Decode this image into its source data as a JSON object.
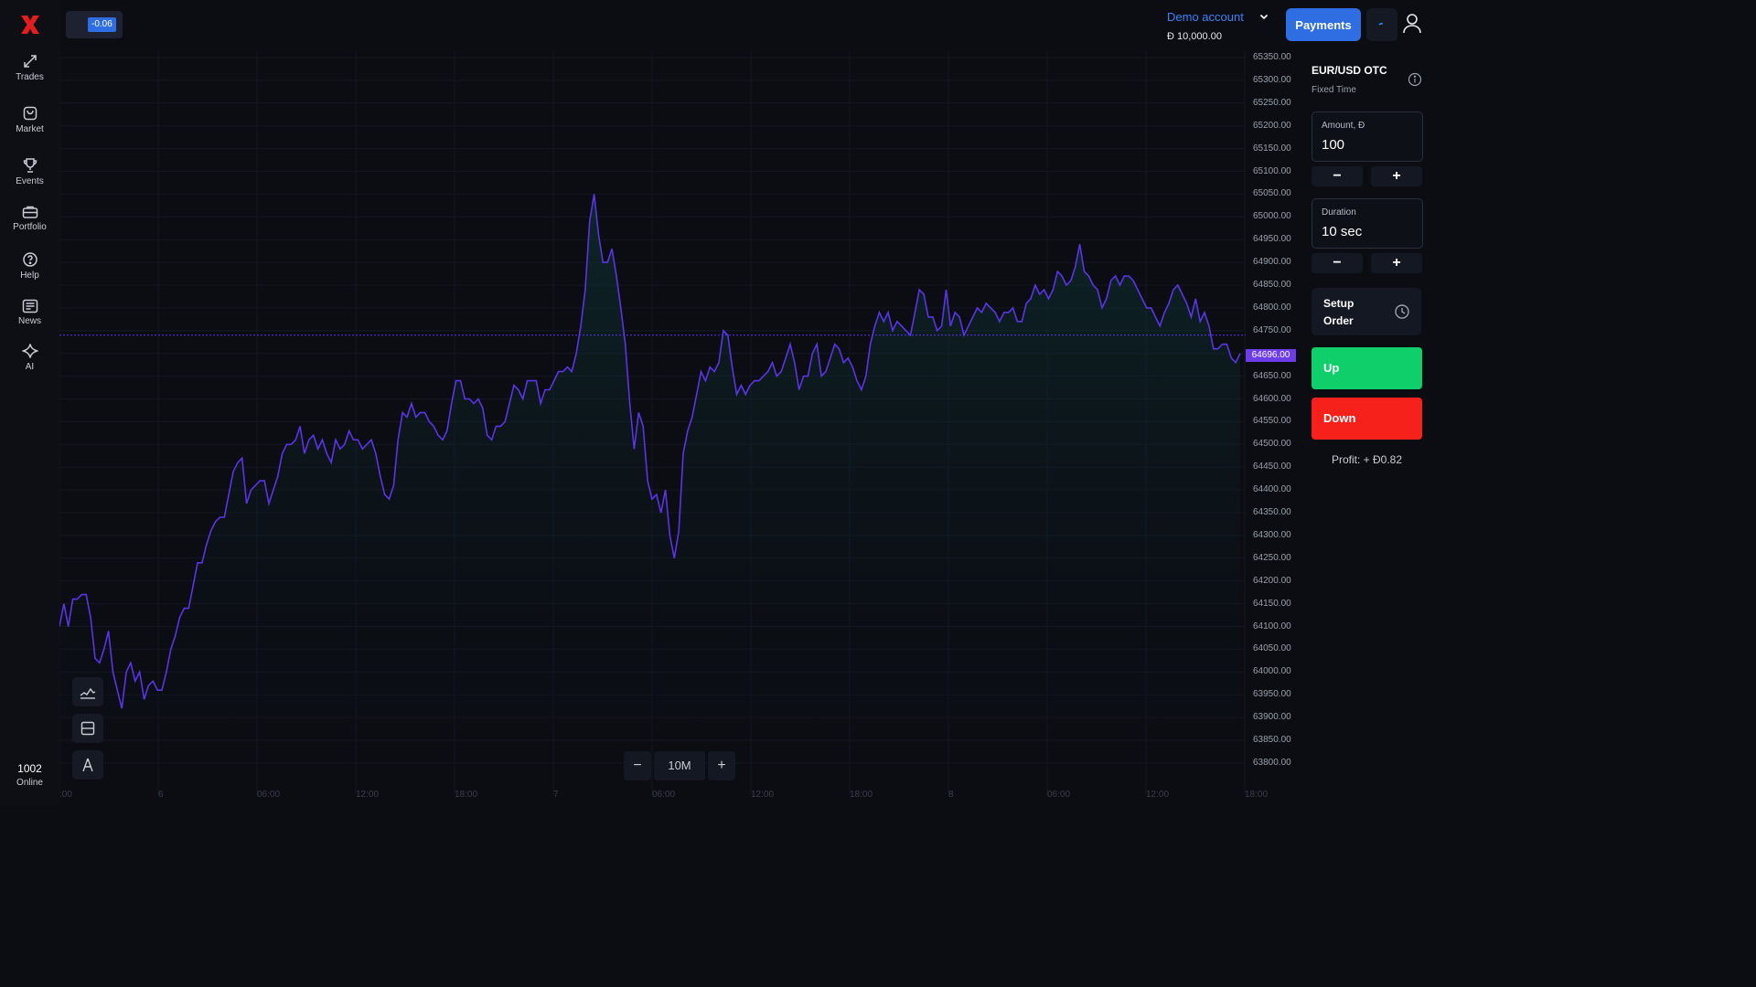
{
  "sidebar": {
    "logo": "x-logo",
    "items": [
      {
        "label": "Trades",
        "icon": "trades-arrows-icon"
      },
      {
        "label": "Market",
        "icon": "shopping-bag-icon"
      },
      {
        "label": "Events",
        "icon": "trophy-icon"
      },
      {
        "label": "Portfolio",
        "icon": "briefcase-icon"
      },
      {
        "label": "Help",
        "icon": "help-icon"
      },
      {
        "label": "News",
        "icon": "news-icon"
      },
      {
        "label": "AI",
        "icon": "sparkle-icon"
      }
    ],
    "online_count": "1002",
    "online_label": "Online"
  },
  "header": {
    "change_badge": "-0.06",
    "account_name": "Demo account",
    "account_balance": "Đ 10,000.00",
    "payments_label": "Payments"
  },
  "chart": {
    "current_price": "64696.00",
    "zoom_level": "10M",
    "zoom_minus": "−",
    "zoom_plus": "+",
    "y_ticks": [
      "65350.00",
      "65300.00",
      "65250.00",
      "65200.00",
      "65150.00",
      "65100.00",
      "65050.00",
      "65000.00",
      "64950.00",
      "64900.00",
      "64850.00",
      "64800.00",
      "64750.00",
      "64700.00",
      "64650.00",
      "64600.00",
      "64550.00",
      "64500.00",
      "64450.00",
      "64400.00",
      "64350.00",
      "64300.00",
      "64250.00",
      "64200.00",
      "64150.00",
      "64100.00",
      "64050.00",
      "64000.00",
      "63950.00",
      "63900.00",
      "63850.00",
      "63800.00"
    ],
    "x_ticks": [
      ":00",
      "6",
      "06:00",
      "12:00",
      "18:00",
      "7",
      "06:00",
      "12:00",
      "18:00",
      "8",
      "06:00",
      "12:00",
      "18:00"
    ],
    "line_color": "#5b34e8",
    "accent_color": "#6c3ce9"
  },
  "chart_data": {
    "type": "line",
    "ylim": [
      63780,
      65360
    ],
    "series": [
      {
        "values": [
          64100,
          64150,
          64100,
          64160,
          64160,
          64170,
          64170,
          64120,
          64030,
          64020,
          64050,
          64090,
          64000,
          63960,
          63920,
          64000,
          64020,
          63980,
          64000,
          63940,
          63970,
          63980,
          63960,
          63960,
          64000,
          64050,
          64080,
          64120,
          64140,
          64140,
          64190,
          64240,
          64240,
          64280,
          64310,
          64330,
          64340,
          64340,
          64390,
          64440,
          64460,
          64470,
          64370,
          64400,
          64410,
          64420,
          64420,
          64370,
          64400,
          64430,
          64480,
          64500,
          64500,
          64510,
          64540,
          64480,
          64510,
          64520,
          64490,
          64510,
          64480,
          64460,
          64510,
          64490,
          64500,
          64530,
          64510,
          64510,
          64490,
          64500,
          64510,
          64480,
          64430,
          64390,
          64380,
          64410,
          64510,
          64570,
          64560,
          64590,
          64560,
          64570,
          64570,
          64550,
          64540,
          64520,
          64510,
          64530,
          64590,
          64640,
          64640,
          64600,
          64600,
          64590,
          64600,
          64580,
          64520,
          64510,
          64540,
          64540,
          64550,
          64590,
          64630,
          64620,
          64600,
          64640,
          64640,
          64640,
          64590,
          64620,
          64620,
          64640,
          64660,
          64660,
          64670,
          64660,
          64700,
          64760,
          64840,
          64990,
          65050,
          64960,
          64900,
          64900,
          64930,
          64870,
          64800,
          64720,
          64590,
          64490,
          64570,
          64540,
          64420,
          64380,
          64390,
          64350,
          64400,
          64300,
          64250,
          64310,
          64480,
          64530,
          64560,
          64610,
          64660,
          64640,
          64670,
          64660,
          64680,
          64750,
          64740,
          64670,
          64610,
          64630,
          64610,
          64630,
          64640,
          64640,
          64650,
          64660,
          64680,
          64650,
          64660,
          64690,
          64720,
          64680,
          64620,
          64650,
          64650,
          64700,
          64720,
          64650,
          64660,
          64690,
          64720,
          64710,
          64680,
          64690,
          64670,
          64640,
          64620,
          64650,
          64720,
          64760,
          64790,
          64770,
          64790,
          64750,
          64770,
          64760,
          64750,
          64740,
          64790,
          64840,
          64830,
          64780,
          64780,
          64750,
          64760,
          64840,
          64760,
          64790,
          64780,
          64740,
          64760,
          64780,
          64800,
          64790,
          64810,
          64800,
          64790,
          64770,
          64790,
          64790,
          64800,
          64770,
          64770,
          64810,
          64820,
          64850,
          64830,
          64840,
          64820,
          64840,
          64880,
          64870,
          64850,
          64860,
          64890,
          64940,
          64880,
          64870,
          64850,
          64840,
          64800,
          64820,
          64860,
          64870,
          64850,
          64870,
          64870,
          64860,
          64840,
          64820,
          64800,
          64800,
          64780,
          64760,
          64790,
          64810,
          64840,
          64850,
          64830,
          64810,
          64780,
          64820,
          64770,
          64790,
          64760,
          64710,
          64710,
          64720,
          64720,
          64690,
          64680,
          64700
        ]
      }
    ],
    "last_value": 64696
  },
  "tools": [
    {
      "icon": "line-chart-icon"
    },
    {
      "icon": "layout-icon"
    },
    {
      "icon": "drawing-tools-icon"
    }
  ],
  "panel": {
    "asset_name": "EUR/USD OTC",
    "asset_type": "Fixed Time",
    "amount_label": "Amount, Đ",
    "amount_value": "100",
    "duration_label": "Duration",
    "duration_value": "10 sec",
    "minus": "−",
    "plus": "+",
    "setup_order_label": "Setup Order",
    "up_label": "Up",
    "down_label": "Down",
    "profit_text": "Profit: + Đ0.82",
    "up_color": "#0fcf6b",
    "down_color": "#f5211a"
  }
}
